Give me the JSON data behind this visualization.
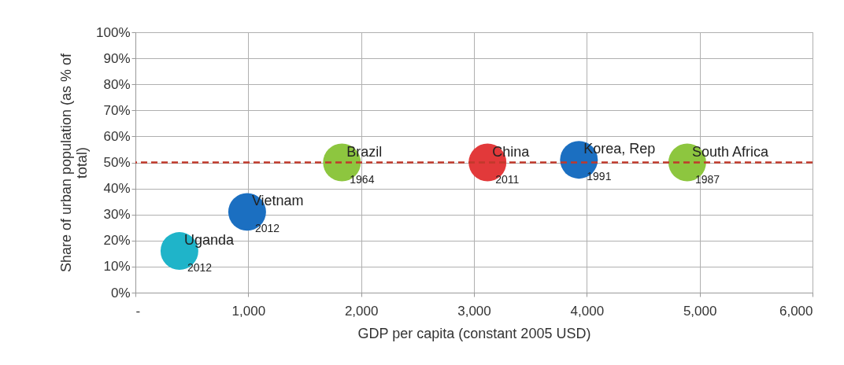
{
  "chart_data": {
    "type": "scatter",
    "xlabel": "GDP per capita (constant 2005 USD)",
    "ylabel": "Share of urban population (as % of total)",
    "xlim": [
      0,
      6000
    ],
    "xticks": [
      {
        "value": 0,
        "label": "-"
      },
      {
        "value": 1000,
        "label": "1,000"
      },
      {
        "value": 2000,
        "label": "2,000"
      },
      {
        "value": 3000,
        "label": "3,000"
      },
      {
        "value": 4000,
        "label": "4,000"
      },
      {
        "value": 5000,
        "label": "5,000"
      },
      {
        "value": 6000,
        "label": "6,000"
      }
    ],
    "ylim": [
      0,
      100
    ],
    "yticks": [
      {
        "value": 0,
        "label": "0%"
      },
      {
        "value": 10,
        "label": "10%"
      },
      {
        "value": 20,
        "label": "20%"
      },
      {
        "value": 30,
        "label": "30%"
      },
      {
        "value": 40,
        "label": "40%"
      },
      {
        "value": 50,
        "label": "50%"
      },
      {
        "value": 60,
        "label": "60%"
      },
      {
        "value": 70,
        "label": "70%"
      },
      {
        "value": 80,
        "label": "80%"
      },
      {
        "value": 90,
        "label": "90%"
      },
      {
        "value": 100,
        "label": "100%"
      }
    ],
    "grid": true,
    "legend": false,
    "marker": "circle",
    "series": [
      {
        "name": "Uganda",
        "color": "#1fb4c9",
        "x": [
          390
        ],
        "values": [
          16
        ]
      },
      {
        "name": "Vietnam",
        "color": "#1b6fc1",
        "x": [
          990
        ],
        "values": [
          31
        ]
      },
      {
        "name": "Brazil",
        "color": "#8dc63f",
        "x": [
          1830
        ],
        "values": [
          50
        ]
      },
      {
        "name": "China",
        "color": "#e2393a",
        "x": [
          3120
        ],
        "values": [
          50
        ]
      },
      {
        "name": "Korea, Rep",
        "color": "#1b6fc1",
        "x": [
          3930
        ],
        "values": [
          51
        ]
      },
      {
        "name": "South Africa",
        "color": "#8dc63f",
        "x": [
          4890
        ],
        "values": [
          50
        ]
      }
    ],
    "annotations": [
      {
        "text": "2012",
        "x": 390,
        "y": 16
      },
      {
        "text": "2012",
        "x": 990,
        "y": 31
      },
      {
        "text": "1964",
        "x": 1830,
        "y": 50
      },
      {
        "text": "2011",
        "x": 3120,
        "y": 50
      },
      {
        "text": "1991",
        "x": 3930,
        "y": 51
      },
      {
        "text": "1987",
        "x": 4890,
        "y": 50
      }
    ],
    "ref_lines": [
      {
        "axis": "y",
        "value": 50,
        "color": "#c0392b",
        "line_style": "dashed"
      }
    ]
  }
}
